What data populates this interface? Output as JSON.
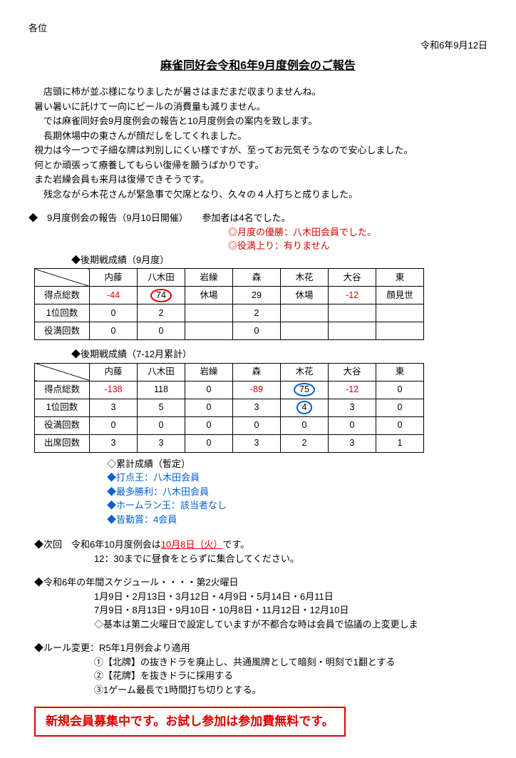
{
  "addressee": "各位",
  "dateline": "令和6年9月12日",
  "title": "麻雀同好会令和6年9月度例会のご報告",
  "paragraphs": [
    "店頭に柿が並ぶ様になりましたが暑さはまだまだ収まりませんね。",
    "暑い暑いに託けて一向にビールの消費量も減りません。",
    "では麻雀同好会9月度例会の報告と10月度例会の案内を致します。",
    "長期休場中の東さんが顔だしをしてくれました。",
    "視力は今一つで子細な牌は判別しにくい様ですが、至ってお元気そうなので安心しました。",
    "何とか頑張って療養してもらい復帰を願うばかりです。",
    "また岩繰会員も来月は復帰できそうです。",
    "残念ながら木花さんが緊急事で欠席となり、久々の４人打ちと成りました。"
  ],
  "report_header": "◆　9月度例会の報告（9月10日開催）　　参加者は4名でした。",
  "winner_line": "◎月度の優勝：八木田会員でした。",
  "yakuman_line": "◎役満上り：有りません",
  "table1": {
    "title": "◆後期戦成績（9月度）",
    "columns": [
      "内藤",
      "八木田",
      "岩繰",
      "森",
      "木花",
      "大谷",
      "東"
    ],
    "rows": [
      {
        "head": "得点総数",
        "cells": [
          {
            "v": "-44",
            "style": "red"
          },
          {
            "v": "74",
            "style": "circled-red"
          },
          {
            "v": "休場"
          },
          {
            "v": "29"
          },
          {
            "v": "休場"
          },
          {
            "v": "-12",
            "style": "red"
          },
          {
            "v": "顔見世"
          }
        ]
      },
      {
        "head": "1位回数",
        "cells": [
          {
            "v": "0"
          },
          {
            "v": "2"
          },
          {
            "v": ""
          },
          {
            "v": "2"
          },
          {
            "v": ""
          },
          {
            "v": ""
          },
          {
            "v": ""
          }
        ]
      },
      {
        "head": "役満回数",
        "cells": [
          {
            "v": "0"
          },
          {
            "v": "0"
          },
          {
            "v": ""
          },
          {
            "v": "0"
          },
          {
            "v": ""
          },
          {
            "v": ""
          },
          {
            "v": ""
          }
        ]
      }
    ]
  },
  "table2": {
    "title": "◆後期戦成績（7-12月累計）",
    "columns": [
      "内藤",
      "八木田",
      "岩繰",
      "森",
      "木花",
      "大谷",
      "東"
    ],
    "rows": [
      {
        "head": "得点総数",
        "cells": [
          {
            "v": "-138",
            "style": "red"
          },
          {
            "v": "118"
          },
          {
            "v": "0"
          },
          {
            "v": "-89",
            "style": "red"
          },
          {
            "v": "75",
            "style": "circled-blue"
          },
          {
            "v": "-12",
            "style": "red"
          },
          {
            "v": "0"
          }
        ]
      },
      {
        "head": "1位回数",
        "cells": [
          {
            "v": "3"
          },
          {
            "v": "5"
          },
          {
            "v": "0"
          },
          {
            "v": "3"
          },
          {
            "v": "4",
            "style": "circled-blue"
          },
          {
            "v": "3"
          },
          {
            "v": "0"
          }
        ]
      },
      {
        "head": "役満回数",
        "cells": [
          {
            "v": "0"
          },
          {
            "v": "0"
          },
          {
            "v": "0"
          },
          {
            "v": "0"
          },
          {
            "v": "0"
          },
          {
            "v": "0"
          },
          {
            "v": "0"
          }
        ]
      },
      {
        "head": "出席回数",
        "cells": [
          {
            "v": "3"
          },
          {
            "v": "3"
          },
          {
            "v": "0"
          },
          {
            "v": "3"
          },
          {
            "v": "2"
          },
          {
            "v": "3"
          },
          {
            "v": "1"
          }
        ]
      }
    ]
  },
  "cumheader": "◇累計成績（暫定）",
  "cumlines": [
    "◆打点王：八木田会員",
    "◆最多勝利：八木田会員",
    "◆ホームラン王：該当者なし",
    "◆皆勤賞：4会員"
  ],
  "next_pre": "◆次回　令和6年10月度例会は",
  "next_date": "10月8日（火）",
  "next_post": "です。",
  "next_note": "12：30までに昼食をとらずに集合してください。",
  "schedule_head": "◆令和6年の年間スケジュール・・・・第2火曜日",
  "schedule1": "1月9日・2月13日・3月12日・4月9日・5月14日・6月11日",
  "schedule2": "7月9日・8月13日・9月10日・10月8日・11月12日・12月10日",
  "schedule_note": "◇基本は第二火曜日で設定していますが不都合な時は会員で協議の上変更しま",
  "rules_head": "◆ルール変更：R5年1月例会より適用",
  "rules": [
    "①【北牌】の抜きドラを廃止し、共通風牌として暗刻・明刻で1翻とする",
    "②【花牌】を抜きドラに採用する",
    "③1ゲーム最長で1時間打ち切りとする。"
  ],
  "recruit": "新規会員募集中です。お試し参加は参加費無料です。"
}
